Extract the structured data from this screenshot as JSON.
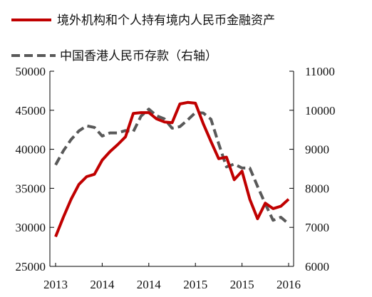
{
  "chart_data": {
    "type": "line",
    "title": "",
    "legend": [
      {
        "label": "境外机构和个人持有境内人民币金融资产",
        "color": "#c00000",
        "style": "solid",
        "axis": "left"
      },
      {
        "label": "中国香港人民币存款（右轴）",
        "color": "#595959",
        "style": "dashed",
        "axis": "right"
      }
    ],
    "x_tick_labels": [
      "2013",
      "2014",
      "2014",
      "2015",
      "2015",
      "2016"
    ],
    "y_left": {
      "min": 25000,
      "max": 50000,
      "ticks": [
        25000,
        30000,
        35000,
        40000,
        45000,
        50000
      ]
    },
    "y_right": {
      "min": 6000,
      "max": 11000,
      "ticks": [
        6000,
        7000,
        8000,
        9000,
        10000,
        11000
      ]
    },
    "series": [
      {
        "name": "境外机构和个人持有境内人民币金融资产",
        "axis": "left",
        "values": [
          28800,
          31300,
          33600,
          35500,
          36500,
          36800,
          38600,
          39700,
          40600,
          41600,
          44600,
          44700,
          44700,
          43900,
          43500,
          43400,
          45800,
          46000,
          45900,
          43300,
          41000,
          38800,
          39000,
          36100,
          37200,
          33600,
          31100,
          33100,
          32400,
          32700,
          33600
        ]
      },
      {
        "name": "中国香港人民币存款（右轴）",
        "axis": "right",
        "values": [
          8600,
          8960,
          9250,
          9470,
          9600,
          9560,
          9340,
          9420,
          9420,
          9480,
          9450,
          9850,
          10030,
          9860,
          9780,
          9540,
          9580,
          9750,
          9940,
          9930,
          9770,
          9140,
          8550,
          8620,
          8520,
          8520,
          8050,
          7600,
          7180,
          7260,
          7090
        ]
      }
    ],
    "grid": false,
    "legend_position": "top"
  }
}
